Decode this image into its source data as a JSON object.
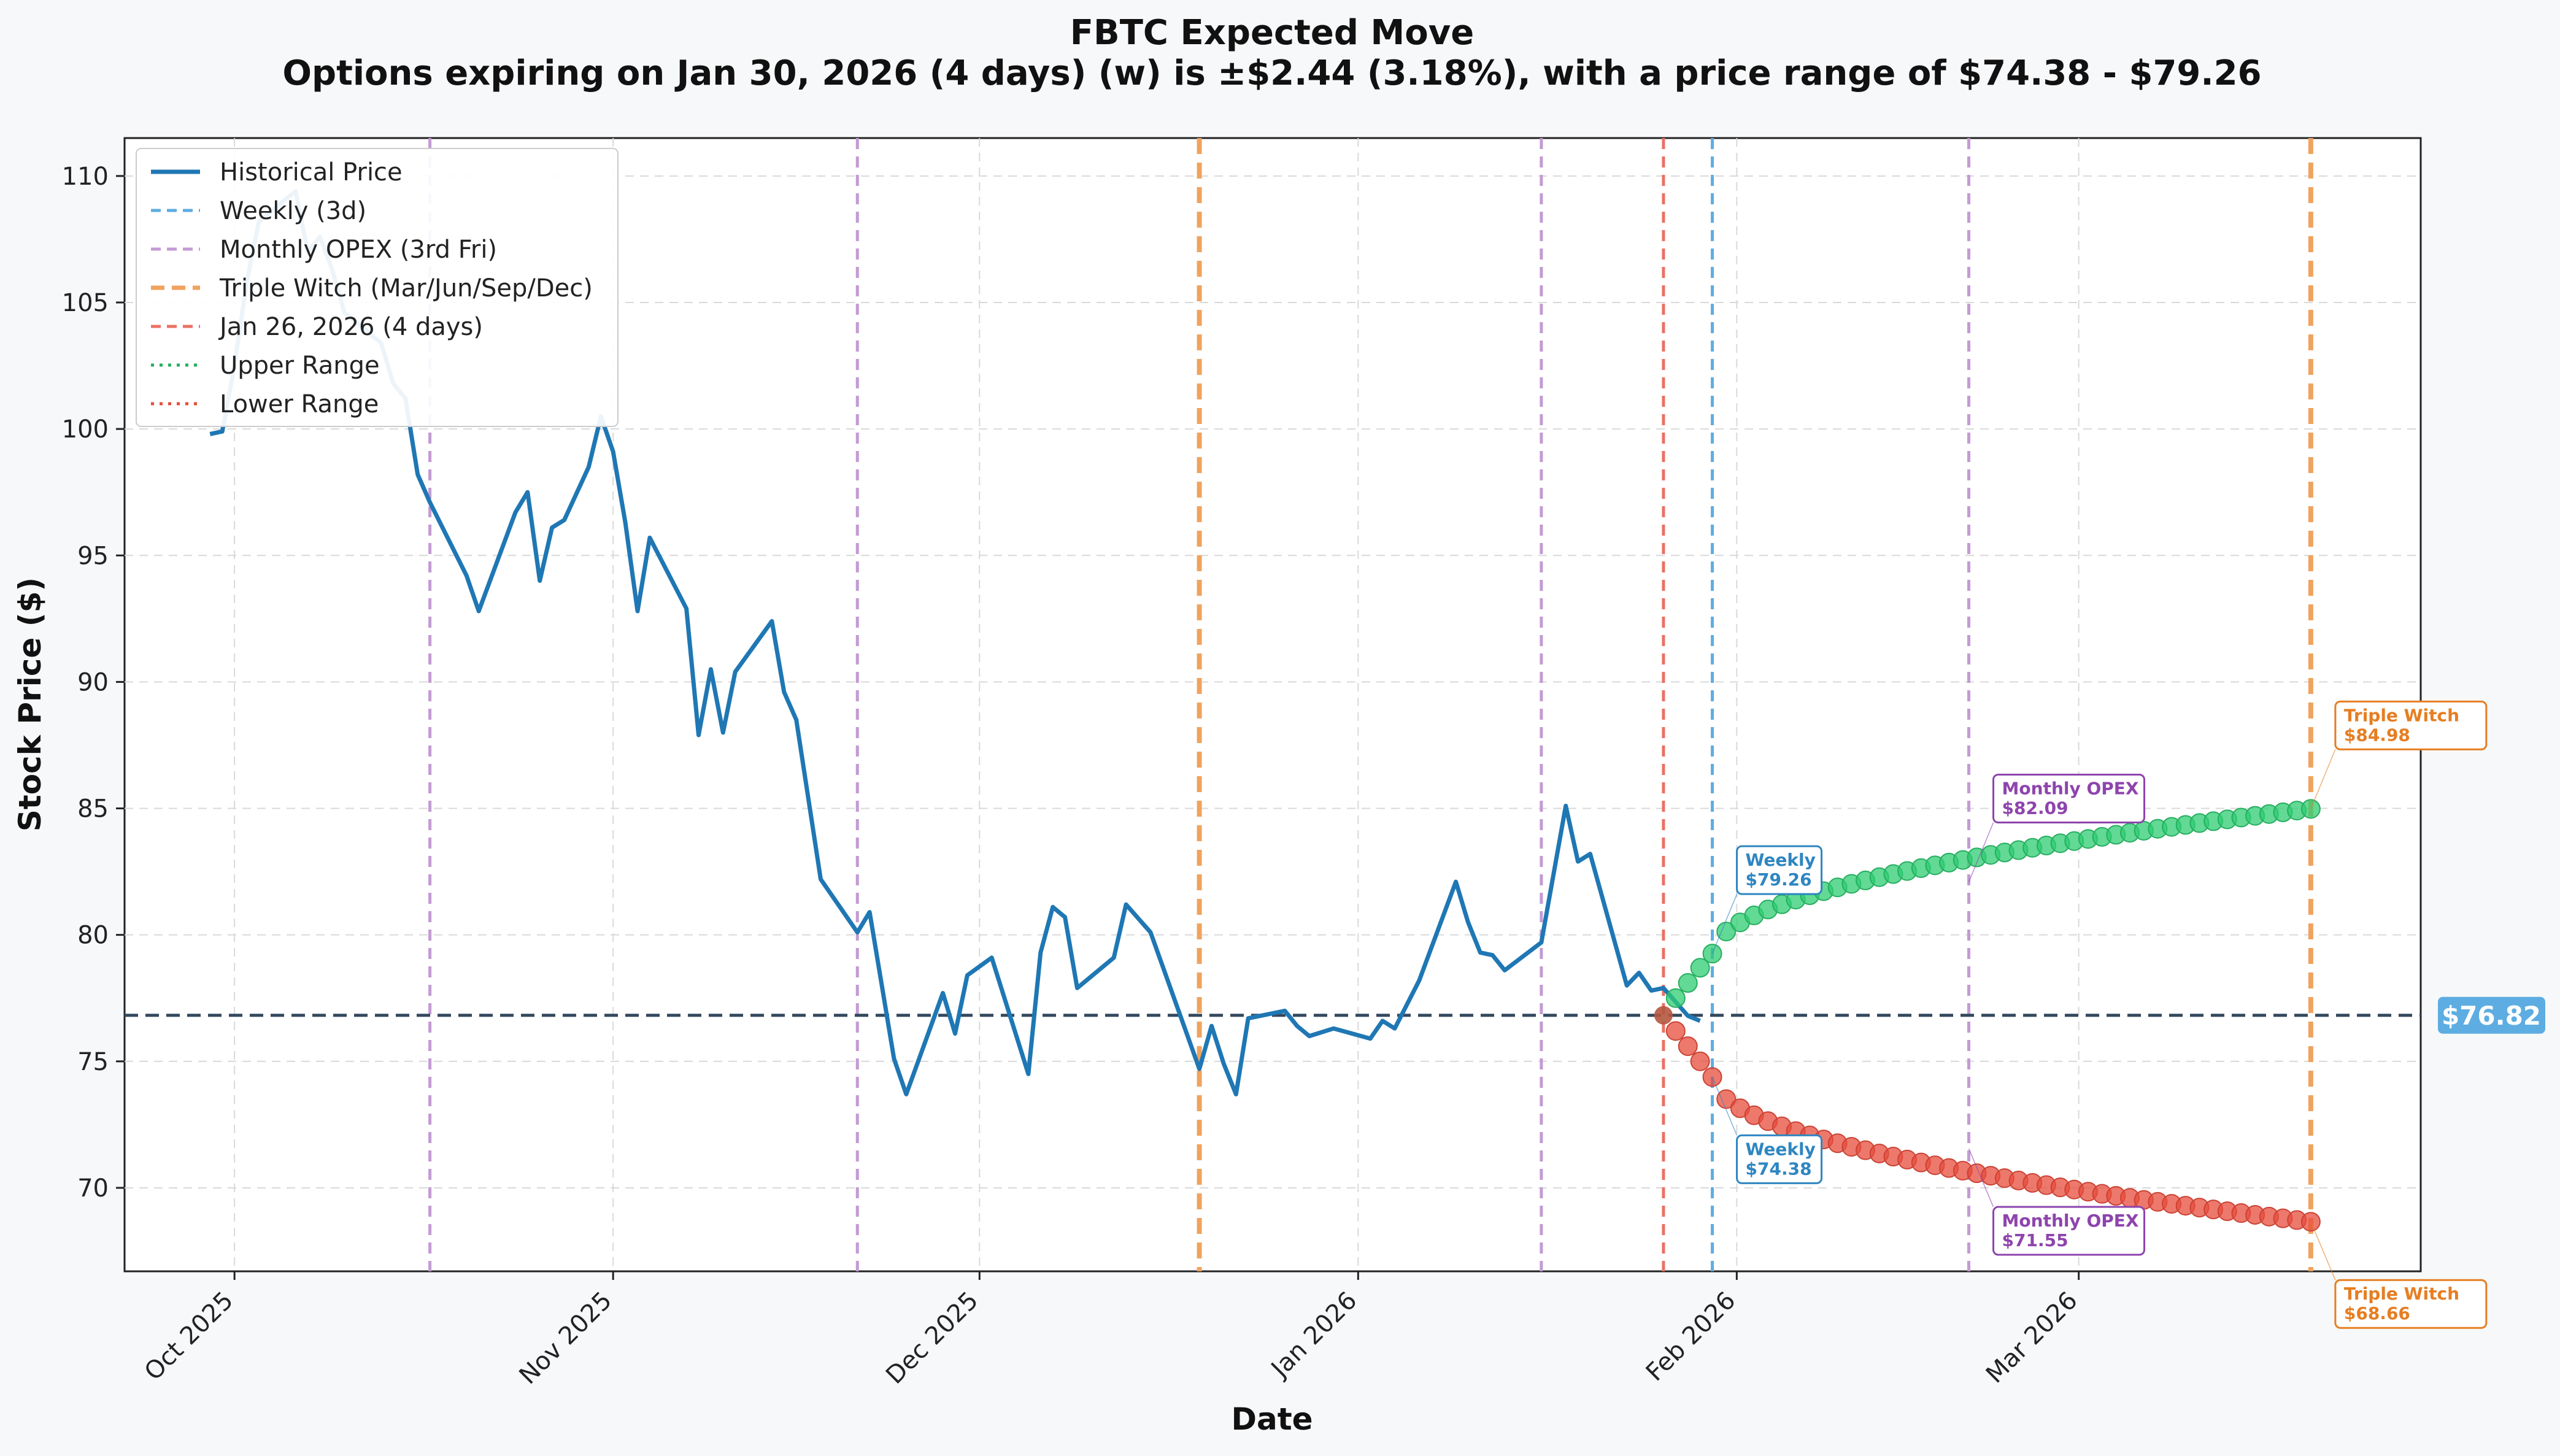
{
  "chart_data": {
    "type": "line",
    "title": "FBTC Expected Move",
    "subtitle": "Options expiring on Jan 30, 2026 (4 days) (w) is ±$2.44 (3.18%), with a price range of $74.38 - $79.26",
    "xlabel": "Date",
    "ylabel": "Stock Price ($)",
    "x_range": [
      "2025-09-22",
      "2026-03-29"
    ],
    "ylim": [
      66.7,
      111.5
    ],
    "y_ticks": [
      70,
      75,
      80,
      85,
      90,
      95,
      100,
      105,
      110
    ],
    "x_ticks": [
      {
        "date": "2025-10-01",
        "label": "Oct 2025"
      },
      {
        "date": "2025-11-01",
        "label": "Nov 2025"
      },
      {
        "date": "2025-12-01",
        "label": "Dec 2025"
      },
      {
        "date": "2026-01-01",
        "label": "Jan 2026"
      },
      {
        "date": "2026-02-01",
        "label": "Feb 2026"
      },
      {
        "date": "2026-03-01",
        "label": "Mar 2026"
      }
    ],
    "grid": true,
    "legend_position": "top-left",
    "legend": [
      {
        "label": "Historical Price",
        "color": "#1f77b4",
        "style": "solid"
      },
      {
        "label": "Weekly (3d)",
        "color": "#5dade2",
        "style": "dashed"
      },
      {
        "label": "Monthly OPEX (3rd Fri)",
        "color": "#c39bd3",
        "style": "dashed"
      },
      {
        "label": "Triple Witch (Mar/Jun/Sep/Dec)",
        "color": "#f0a35e",
        "style": "dashed-thick"
      },
      {
        "label": "Jan 26, 2026 (4 days)",
        "color": "#ec7063",
        "style": "dashed"
      },
      {
        "label": "Upper Range",
        "color": "#27ae60",
        "style": "dotted"
      },
      {
        "label": "Lower Range",
        "color": "#e74c3c",
        "style": "dotted"
      }
    ],
    "current_price": 76.82,
    "current_price_label": "$76.82",
    "historical_series": {
      "name": "Historical Price",
      "points": [
        [
          "2025-09-29",
          99.8
        ],
        [
          "2025-09-30",
          99.9
        ],
        [
          "2025-10-01",
          102.5
        ],
        [
          "2025-10-02",
          105.8
        ],
        [
          "2025-10-03",
          108.2
        ],
        [
          "2025-10-06",
          109.4
        ],
        [
          "2025-10-07",
          107.0
        ],
        [
          "2025-10-08",
          107.6
        ],
        [
          "2025-10-09",
          106.3
        ],
        [
          "2025-10-10",
          104.6
        ],
        [
          "2025-10-13",
          103.4
        ],
        [
          "2025-10-14",
          101.8
        ],
        [
          "2025-10-15",
          101.2
        ],
        [
          "2025-10-16",
          98.2
        ],
        [
          "2025-10-17",
          97.1
        ],
        [
          "2025-10-20",
          94.2
        ],
        [
          "2025-10-21",
          92.8
        ],
        [
          "2025-10-24",
          96.7
        ],
        [
          "2025-10-25",
          97.5
        ],
        [
          "2025-10-26",
          94.0
        ],
        [
          "2025-10-27",
          96.1
        ],
        [
          "2025-10-28",
          96.4
        ],
        [
          "2025-10-30",
          98.5
        ],
        [
          "2025-10-31",
          100.5
        ],
        [
          "2025-11-01",
          99.1
        ],
        [
          "2025-11-02",
          96.3
        ],
        [
          "2025-11-03",
          92.8
        ],
        [
          "2025-11-04",
          95.7
        ],
        [
          "2025-11-07",
          92.9
        ],
        [
          "2025-11-08",
          87.9
        ],
        [
          "2025-11-09",
          90.5
        ],
        [
          "2025-11-10",
          88.0
        ],
        [
          "2025-11-11",
          90.4
        ],
        [
          "2025-11-14",
          92.4
        ],
        [
          "2025-11-15",
          89.6
        ],
        [
          "2025-11-16",
          88.5
        ],
        [
          "2025-11-18",
          82.2
        ],
        [
          "2025-11-21",
          80.1
        ],
        [
          "2025-11-22",
          80.9
        ],
        [
          "2025-11-23",
          78.0
        ],
        [
          "2025-11-24",
          75.1
        ],
        [
          "2025-11-25",
          73.7
        ],
        [
          "2025-11-28",
          77.7
        ],
        [
          "2025-11-29",
          76.1
        ],
        [
          "2025-11-30",
          78.4
        ],
        [
          "2025-12-02",
          79.1
        ],
        [
          "2025-12-05",
          74.5
        ],
        [
          "2025-12-06",
          79.3
        ],
        [
          "2025-12-07",
          81.1
        ],
        [
          "2025-12-08",
          80.7
        ],
        [
          "2025-12-09",
          77.9
        ],
        [
          "2025-12-12",
          79.1
        ],
        [
          "2025-12-13",
          81.2
        ],
        [
          "2025-12-15",
          80.1
        ],
        [
          "2025-12-17",
          77.4
        ],
        [
          "2025-12-19",
          74.7
        ],
        [
          "2025-12-20",
          76.4
        ],
        [
          "2025-12-21",
          74.9
        ],
        [
          "2025-12-22",
          73.7
        ],
        [
          "2025-12-23",
          76.7
        ],
        [
          "2025-12-26",
          77.0
        ],
        [
          "2025-12-27",
          76.4
        ],
        [
          "2025-12-28",
          76.0
        ],
        [
          "2025-12-30",
          76.3
        ],
        [
          "2026-01-02",
          75.9
        ],
        [
          "2026-01-03",
          76.6
        ],
        [
          "2026-01-04",
          76.3
        ],
        [
          "2026-01-06",
          78.2
        ],
        [
          "2026-01-09",
          82.1
        ],
        [
          "2026-01-10",
          80.5
        ],
        [
          "2026-01-11",
          79.3
        ],
        [
          "2026-01-12",
          79.2
        ],
        [
          "2026-01-13",
          78.6
        ],
        [
          "2026-01-16",
          79.7
        ],
        [
          "2026-01-18",
          85.1
        ],
        [
          "2026-01-19",
          82.9
        ],
        [
          "2026-01-20",
          83.2
        ],
        [
          "2026-01-23",
          78.0
        ],
        [
          "2026-01-24",
          78.5
        ],
        [
          "2026-01-25",
          77.8
        ],
        [
          "2026-01-26",
          77.9
        ],
        [
          "2026-01-28",
          76.8
        ],
        [
          "2026-01-29",
          76.6
        ]
      ]
    },
    "upper_range": {
      "name": "Upper Range",
      "start": [
        "2026-01-26",
        76.82
      ],
      "ramp": [
        [
          "2026-01-27",
          77.5
        ],
        [
          "2026-01-28",
          78.1
        ],
        [
          "2026-01-29",
          78.7
        ],
        [
          "2026-01-30",
          79.26
        ]
      ],
      "curve_end": [
        "2026-03-20",
        84.98
      ],
      "curve_points": 43
    },
    "lower_range": {
      "name": "Lower Range",
      "start": [
        "2026-01-26",
        76.82
      ],
      "ramp": [
        [
          "2026-01-27",
          76.2
        ],
        [
          "2026-01-28",
          75.6
        ],
        [
          "2026-01-29",
          75.0
        ],
        [
          "2026-01-30",
          74.38
        ]
      ],
      "curve_end": [
        "2026-03-20",
        68.66
      ],
      "curve_points": 43
    },
    "vertical_lines": [
      {
        "date": "2025-10-17",
        "kind": "monthly"
      },
      {
        "date": "2025-11-21",
        "kind": "monthly"
      },
      {
        "date": "2025-12-19",
        "kind": "triple"
      },
      {
        "date": "2026-01-16",
        "kind": "monthly"
      },
      {
        "date": "2026-01-26",
        "kind": "today"
      },
      {
        "date": "2026-01-30",
        "kind": "weekly"
      },
      {
        "date": "2026-02-20",
        "kind": "monthly"
      },
      {
        "date": "2026-03-20",
        "kind": "triple"
      }
    ],
    "annotations": [
      {
        "name": "Weekly",
        "value_label": "$79.26",
        "date": "2026-01-30",
        "value": 79.26,
        "color": "#2e86c1",
        "side": "upper"
      },
      {
        "name": "Weekly",
        "value_label": "$74.38",
        "date": "2026-01-30",
        "value": 74.38,
        "color": "#2e86c1",
        "side": "lower"
      },
      {
        "name": "Monthly OPEX",
        "value_label": "$82.09",
        "date": "2026-02-20",
        "value": 82.09,
        "color": "#8e44ad",
        "side": "upper"
      },
      {
        "name": "Monthly OPEX",
        "value_label": "$71.55",
        "date": "2026-02-20",
        "value": 71.55,
        "color": "#8e44ad",
        "side": "lower"
      },
      {
        "name": "Triple Witch",
        "value_label": "$84.98",
        "date": "2026-03-20",
        "value": 84.98,
        "color": "#e67e22",
        "side": "upper"
      },
      {
        "name": "Triple Witch",
        "value_label": "$68.66",
        "date": "2026-03-20",
        "value": 68.66,
        "color": "#e67e22",
        "side": "lower"
      }
    ],
    "colors": {
      "historical": "#1f77b4",
      "upper": "#2ecc71",
      "upper_edge": "#27ae60",
      "lower": "#e74c3c",
      "lower_edge": "#cb4335",
      "weekly": "#5dade2",
      "monthly": "#c39bd3",
      "triple": "#f0a35e",
      "today": "#ec7063",
      "current": "#34495e",
      "badge": "#5dade2",
      "start_point": "#b5573f"
    }
  }
}
